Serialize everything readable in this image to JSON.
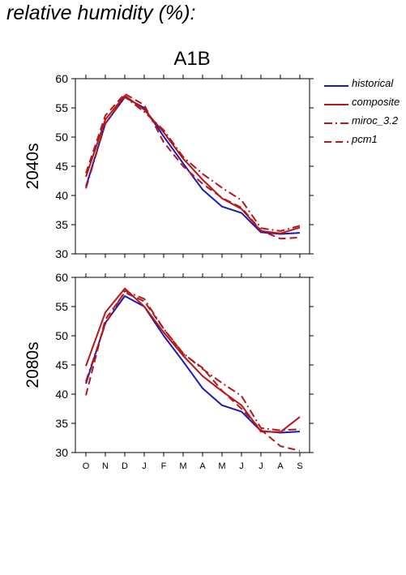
{
  "heading": "relative humidity (%):",
  "colors": {
    "historical": "#1a1ab4",
    "scenario": "#b4181a"
  },
  "legend": [
    {
      "label": "historical",
      "color": "#1a1ab4",
      "dash": "solid"
    },
    {
      "label": "composite",
      "color": "#b4181a",
      "dash": "solid"
    },
    {
      "label": "miroc_3.2",
      "color": "#b4181a",
      "dash": "dashdot"
    },
    {
      "label": "pcm1",
      "color": "#b4181a",
      "dash": "dashed"
    }
  ],
  "chart_data": {
    "type": "line",
    "title": "A1B",
    "categories": [
      "O",
      "N",
      "D",
      "J",
      "F",
      "M",
      "A",
      "M",
      "J",
      "J",
      "A",
      "S"
    ],
    "panels": [
      {
        "ylabel": "2040s",
        "ylim": [
          30,
          60
        ],
        "yticks": [
          30,
          35,
          40,
          45,
          50,
          55,
          60
        ],
        "series": [
          {
            "name": "historical",
            "values": [
              41.5,
              52.3,
              56.8,
              55.0,
              50.1,
              45.5,
              41.0,
              38.1,
              37.0,
              33.7,
              33.4,
              33.6
            ]
          },
          {
            "name": "composite",
            "values": [
              43.2,
              53.0,
              57.1,
              54.7,
              50.8,
              46.3,
              42.7,
              39.5,
              37.7,
              33.9,
              33.5,
              34.5
            ]
          },
          {
            "name": "miroc_3.2",
            "values": [
              41.2,
              52.3,
              56.9,
              54.3,
              51.2,
              46.6,
              43.7,
              41.3,
              39.2,
              34.4,
              33.9,
              34.8
            ]
          },
          {
            "name": "pcm1",
            "values": [
              43.8,
              53.7,
              57.4,
              55.5,
              49.1,
              45.0,
              42.0,
              39.6,
              37.9,
              34.0,
              32.6,
              32.8
            ]
          }
        ]
      },
      {
        "ylabel": "2080s",
        "ylim": [
          30,
          60
        ],
        "yticks": [
          30,
          35,
          40,
          45,
          50,
          55,
          60
        ],
        "series": [
          {
            "name": "historical",
            "values": [
              41.8,
              52.2,
              56.8,
              55.0,
              50.0,
              45.6,
              41.0,
              38.1,
              37.0,
              33.7,
              33.4,
              33.6
            ]
          },
          {
            "name": "composite",
            "values": [
              44.8,
              54.0,
              58.1,
              55.0,
              50.6,
              46.6,
              43.1,
              40.5,
              38.1,
              33.6,
              33.5,
              36.1
            ]
          },
          {
            "name": "miroc_3.2",
            "values": [
              42.2,
              52.0,
              57.7,
              56.3,
              51.2,
              47.0,
              44.3,
              41.9,
              39.7,
              34.2,
              33.8,
              34.0
            ]
          },
          {
            "name": "pcm1",
            "values": [
              39.8,
              52.8,
              57.4,
              55.9,
              51.2,
              46.9,
              44.5,
              40.6,
              37.5,
              33.9,
              31.1,
              30.3
            ]
          }
        ]
      }
    ],
    "grid": false,
    "legend_position": "right"
  }
}
